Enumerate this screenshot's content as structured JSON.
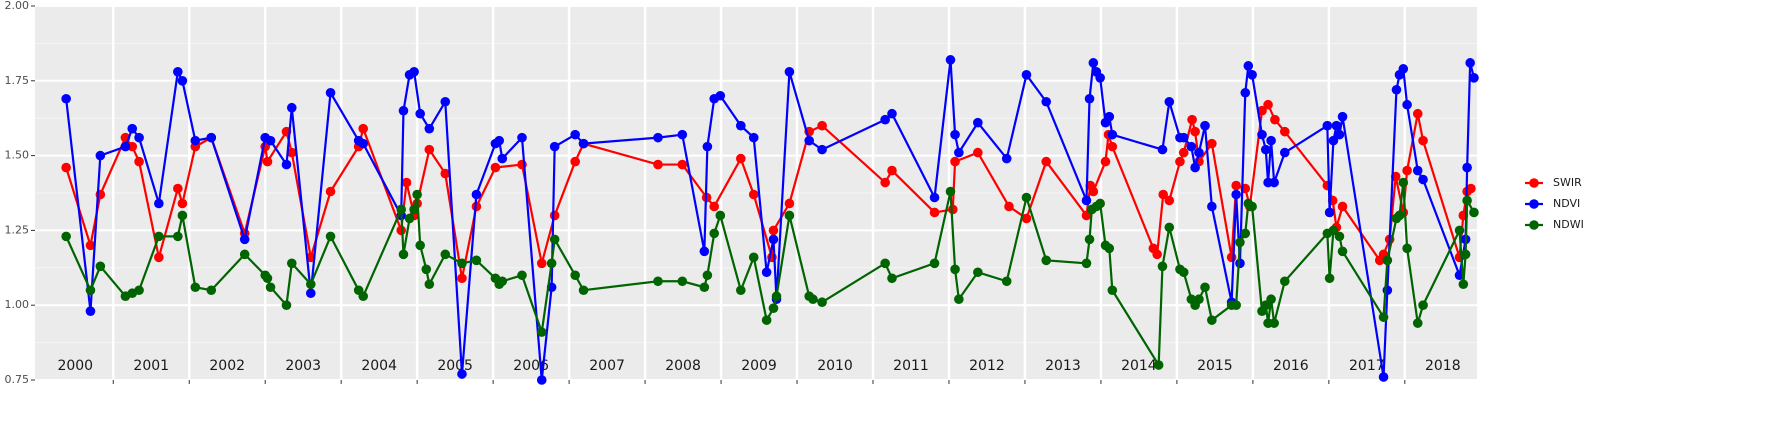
{
  "chart_data": {
    "type": "line",
    "xlim": [
      1999.97,
      2018.95
    ],
    "ylim": [
      0.75,
      2.0
    ],
    "yticks": [
      0.75,
      {
        "value": 1.0,
        "label": "1.00"
      },
      1.25,
      {
        "value": 1.5,
        "label": "1.50"
      },
      1.75,
      {
        "value": 2.0,
        "label": "2.00"
      }
    ],
    "xticks": [
      {
        "value": 2000.5,
        "label": "2000"
      },
      {
        "value": 2001.5,
        "label": "2001"
      },
      {
        "value": 2002.5,
        "label": "2002"
      },
      {
        "value": 2003.5,
        "label": "2003"
      },
      {
        "value": 2004.5,
        "label": "2004"
      },
      {
        "value": 2005.5,
        "label": "2005"
      },
      {
        "value": 2006.5,
        "label": "2006"
      },
      {
        "value": 2007.5,
        "label": "2007"
      },
      {
        "value": 2008.5,
        "label": "2008"
      },
      {
        "value": 2009.5,
        "label": "2009"
      },
      {
        "value": 2010.5,
        "label": "2010"
      },
      {
        "value": 2011.5,
        "label": "2011"
      },
      {
        "value": 2012.5,
        "label": "2012"
      },
      {
        "value": 2013.5,
        "label": "2013"
      },
      {
        "value": 2014.5,
        "label": "2014"
      },
      {
        "value": 2015.5,
        "label": "2015"
      },
      {
        "value": 2016.5,
        "label": "2016"
      },
      {
        "value": 2017.5,
        "label": "2017"
      },
      {
        "value": 2018.5,
        "label": "2018"
      }
    ],
    "xbreaks": [
      2001,
      2002,
      2003,
      2004,
      2005,
      2006,
      2007,
      2008,
      2009,
      2010,
      2011,
      2012,
      2013,
      2014,
      2015,
      2016,
      2017,
      2018
    ],
    "grid": true,
    "legend": "right",
    "series": [
      {
        "name": "SWIR",
        "color": "#ff0000",
        "x": [
          2000.38,
          2000.7,
          2000.83,
          2001.16,
          2001.25,
          2001.34,
          2001.6,
          2001.85,
          2001.91,
          2002.08,
          2002.29,
          2002.73,
          2003.0,
          2003.03,
          2003.28,
          2003.35,
          2003.6,
          2003.86,
          2004.23,
          2004.29,
          2004.79,
          2004.86,
          2004.96,
          2005.0,
          2005.16,
          2005.37,
          2005.59,
          2005.78,
          2006.03,
          2006.38,
          2006.64,
          2006.81,
          2007.08,
          2007.19,
          2008.17,
          2008.49,
          2008.81,
          2008.91,
          2009.26,
          2009.43,
          2009.67,
          2009.69,
          2009.9,
          2010.16,
          2010.33,
          2011.16,
          2011.25,
          2011.81,
          2012.05,
          2012.08,
          2012.38,
          2012.79,
          2013.02,
          2013.28,
          2013.81,
          2013.86,
          2013.9,
          2014.06,
          2014.1,
          2014.15,
          2014.69,
          2014.74,
          2014.82,
          2014.9,
          2015.04,
          2015.09,
          2015.2,
          2015.24,
          2015.29,
          2015.46,
          2015.72,
          2015.78,
          2015.9,
          2015.96,
          2016.12,
          2016.2,
          2016.29,
          2016.42,
          2016.98,
          2017.05,
          2017.1,
          2017.18,
          2017.67,
          2017.72,
          2017.8,
          2017.88,
          2017.98,
          2018.03,
          2018.17,
          2018.24,
          2018.72,
          2018.77,
          2018.82,
          2018.87
        ],
        "values": [
          1.46,
          1.2,
          1.37,
          1.56,
          1.53,
          1.48,
          1.16,
          1.39,
          1.34,
          1.53,
          1.56,
          1.24,
          1.53,
          1.48,
          1.58,
          1.51,
          1.16,
          1.38,
          1.53,
          1.59,
          1.25,
          1.41,
          1.3,
          1.34,
          1.52,
          1.44,
          1.09,
          1.33,
          1.46,
          1.47,
          1.14,
          1.3,
          1.48,
          1.54,
          1.47,
          1.47,
          1.36,
          1.33,
          1.49,
          1.37,
          1.16,
          1.25,
          1.34,
          1.58,
          1.6,
          1.41,
          1.45,
          1.31,
          1.32,
          1.48,
          1.51,
          1.33,
          1.29,
          1.48,
          1.3,
          1.4,
          1.38,
          1.48,
          1.57,
          1.53,
          1.19,
          1.17,
          1.37,
          1.35,
          1.48,
          1.51,
          1.62,
          1.58,
          1.48,
          1.54,
          1.16,
          1.4,
          1.39,
          1.33,
          1.65,
          1.67,
          1.62,
          1.58,
          1.4,
          1.35,
          1.26,
          1.33,
          1.15,
          1.17,
          1.22,
          1.43,
          1.31,
          1.45,
          1.64,
          1.55,
          1.16,
          1.3,
          1.38,
          1.39
        ]
      },
      {
        "name": "NDVI",
        "color": "#0000ff",
        "x": [
          2000.38,
          2000.7,
          2000.83,
          2001.16,
          2001.25,
          2001.34,
          2001.6,
          2001.85,
          2001.91,
          2002.08,
          2002.29,
          2002.73,
          2003.0,
          2003.07,
          2003.28,
          2003.35,
          2003.6,
          2003.86,
          2004.23,
          2004.29,
          2004.79,
          2004.82,
          2004.9,
          2004.96,
          2005.04,
          2005.16,
          2005.37,
          2005.59,
          2005.78,
          2006.03,
          2006.08,
          2006.12,
          2006.38,
          2006.64,
          2006.77,
          2006.81,
          2007.08,
          2007.19,
          2008.17,
          2008.49,
          2008.78,
          2008.82,
          2008.91,
          2008.99,
          2009.26,
          2009.43,
          2009.6,
          2009.69,
          2009.73,
          2009.9,
          2010.16,
          2010.33,
          2011.16,
          2011.25,
          2011.81,
          2012.02,
          2012.08,
          2012.13,
          2012.38,
          2012.76,
          2013.02,
          2013.28,
          2013.81,
          2013.85,
          2013.9,
          2013.94,
          2013.99,
          2014.06,
          2014.11,
          2014.15,
          2014.81,
          2014.9,
          2015.04,
          2015.09,
          2015.19,
          2015.24,
          2015.29,
          2015.37,
          2015.46,
          2015.72,
          2015.78,
          2015.83,
          2015.9,
          2015.94,
          2015.99,
          2016.12,
          2016.17,
          2016.2,
          2016.24,
          2016.28,
          2016.42,
          2016.98,
          2017.01,
          2017.06,
          2017.1,
          2017.14,
          2017.18,
          2017.72,
          2017.77,
          2017.89,
          2017.93,
          2017.98,
          2018.03,
          2018.17,
          2018.24,
          2018.72,
          2018.8,
          2018.82,
          2018.86,
          2018.91
        ],
        "values": [
          1.69,
          0.98,
          1.5,
          1.53,
          1.59,
          1.56,
          1.34,
          1.78,
          1.75,
          1.55,
          1.56,
          1.22,
          1.56,
          1.55,
          1.47,
          1.66,
          1.04,
          1.71,
          1.55,
          1.54,
          1.3,
          1.65,
          1.77,
          1.78,
          1.64,
          1.59,
          1.68,
          0.77,
          1.37,
          1.54,
          1.55,
          1.49,
          1.56,
          0.75,
          1.06,
          1.53,
          1.57,
          1.54,
          1.56,
          1.57,
          1.18,
          1.53,
          1.69,
          1.7,
          1.6,
          1.56,
          1.11,
          1.22,
          1.02,
          1.78,
          1.55,
          1.52,
          1.62,
          1.64,
          1.36,
          1.82,
          1.57,
          1.51,
          1.61,
          1.49,
          1.77,
          1.68,
          1.35,
          1.69,
          1.81,
          1.78,
          1.76,
          1.61,
          1.63,
          1.57,
          1.52,
          1.68,
          1.56,
          1.56,
          1.53,
          1.46,
          1.51,
          1.6,
          1.33,
          1.01,
          1.37,
          1.14,
          1.71,
          1.8,
          1.77,
          1.57,
          1.52,
          1.41,
          1.55,
          1.41,
          1.51,
          1.6,
          1.31,
          1.55,
          1.6,
          1.57,
          1.63,
          0.76,
          1.05,
          1.72,
          1.77,
          1.79,
          1.67,
          1.45,
          1.42,
          1.1,
          1.22,
          1.46,
          1.81,
          1.76
        ]
      },
      {
        "name": "NDWI",
        "color": "#006400",
        "x": [
          2000.38,
          2000.7,
          2000.83,
          2001.16,
          2001.25,
          2001.34,
          2001.6,
          2001.85,
          2001.91,
          2002.08,
          2002.29,
          2002.73,
          2003.0,
          2003.03,
          2003.07,
          2003.28,
          2003.35,
          2003.6,
          2003.86,
          2004.23,
          2004.29,
          2004.79,
          2004.82,
          2004.9,
          2004.96,
          2005.0,
          2005.04,
          2005.12,
          2005.16,
          2005.37,
          2005.59,
          2005.78,
          2006.03,
          2006.08,
          2006.12,
          2006.38,
          2006.64,
          2006.77,
          2006.81,
          2007.08,
          2007.19,
          2008.17,
          2008.49,
          2008.78,
          2008.82,
          2008.91,
          2008.99,
          2009.26,
          2009.43,
          2009.6,
          2009.69,
          2009.73,
          2009.9,
          2010.16,
          2010.21,
          2010.33,
          2011.16,
          2011.25,
          2011.81,
          2012.02,
          2012.08,
          2012.13,
          2012.38,
          2012.76,
          2013.02,
          2013.28,
          2013.81,
          2013.85,
          2013.88,
          2013.94,
          2013.99,
          2014.06,
          2014.11,
          2014.15,
          2014.76,
          2014.81,
          2014.9,
          2015.04,
          2015.09,
          2015.19,
          2015.24,
          2015.29,
          2015.37,
          2015.46,
          2015.72,
          2015.78,
          2015.83,
          2015.9,
          2015.94,
          2015.99,
          2016.12,
          2016.17,
          2016.2,
          2016.24,
          2016.28,
          2016.42,
          2016.98,
          2017.01,
          2017.06,
          2017.14,
          2017.18,
          2017.72,
          2017.77,
          2017.89,
          2017.93,
          2017.98,
          2018.03,
          2018.17,
          2018.24,
          2018.72,
          2018.77,
          2018.8,
          2018.82,
          2018.91
        ],
        "values": [
          1.23,
          1.05,
          1.13,
          1.03,
          1.04,
          1.05,
          1.23,
          1.23,
          1.3,
          1.06,
          1.05,
          1.17,
          1.1,
          1.09,
          1.06,
          1.0,
          1.14,
          1.07,
          1.23,
          1.05,
          1.03,
          1.32,
          1.17,
          1.29,
          1.32,
          1.37,
          1.2,
          1.12,
          1.07,
          1.17,
          1.14,
          1.15,
          1.09,
          1.07,
          1.08,
          1.1,
          0.91,
          1.14,
          1.22,
          1.1,
          1.05,
          1.08,
          1.08,
          1.06,
          1.1,
          1.24,
          1.3,
          1.05,
          1.16,
          0.95,
          0.99,
          1.03,
          1.3,
          1.03,
          1.02,
          1.01,
          1.14,
          1.09,
          1.14,
          1.38,
          1.12,
          1.02,
          1.11,
          1.08,
          1.36,
          1.15,
          1.14,
          1.22,
          1.32,
          1.33,
          1.34,
          1.2,
          1.19,
          1.05,
          0.8,
          1.13,
          1.26,
          1.12,
          1.11,
          1.02,
          1.0,
          1.02,
          1.06,
          0.95,
          1.0,
          1.0,
          1.21,
          1.24,
          1.34,
          1.33,
          0.98,
          1.0,
          0.94,
          1.02,
          0.94,
          1.08,
          1.24,
          1.09,
          1.25,
          1.23,
          1.18,
          0.96,
          1.15,
          1.29,
          1.3,
          1.41,
          1.19,
          0.94,
          1.0,
          1.25,
          1.07,
          1.17,
          1.35,
          1.31
        ]
      }
    ]
  }
}
